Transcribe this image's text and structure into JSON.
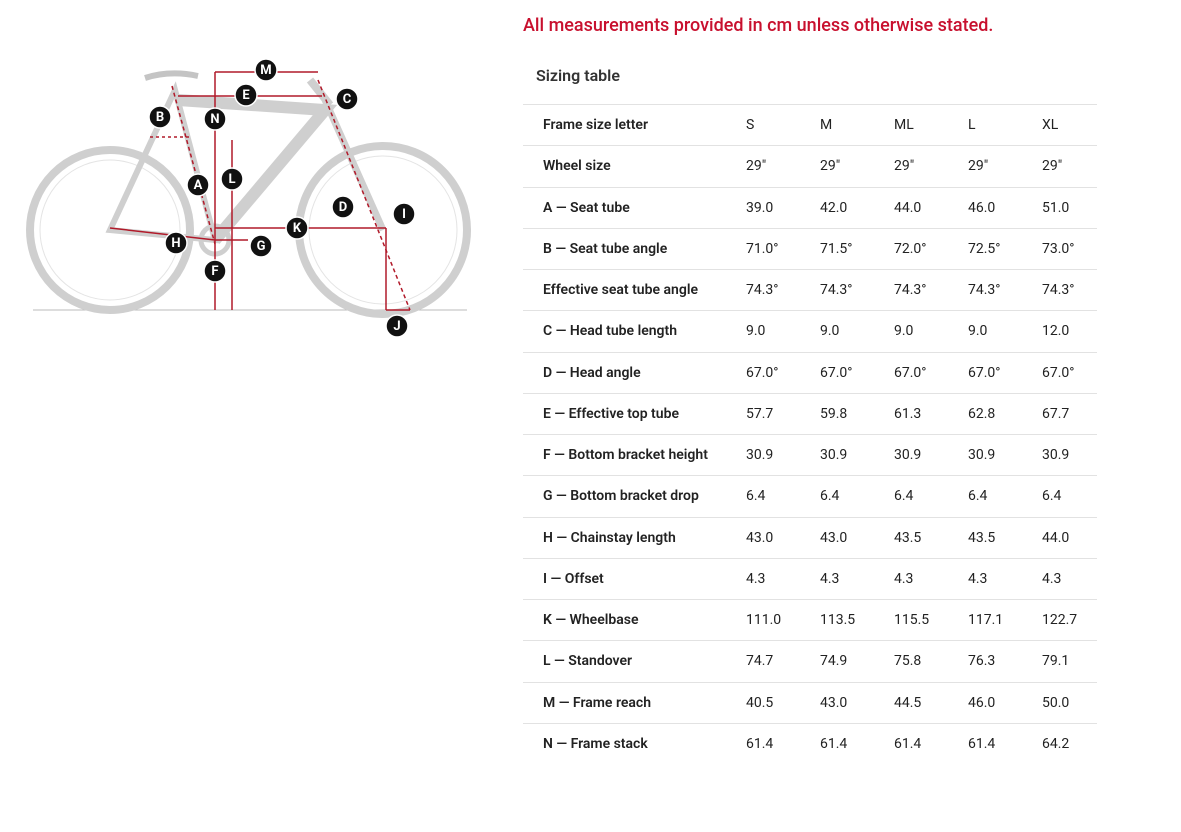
{
  "note": "All measurements provided in cm unless otherwise stated.",
  "diagram": {
    "labels": [
      "M",
      "E",
      "N",
      "B",
      "C",
      "A",
      "L",
      "D",
      "I",
      "K",
      "H",
      "G",
      "F",
      "J"
    ]
  },
  "table": {
    "title": "Sizing table",
    "header": [
      "Frame size letter",
      "S",
      "M",
      "ML",
      "L",
      "XL"
    ],
    "rows": [
      [
        "Wheel size",
        "29\"",
        "29\"",
        "29\"",
        "29\"",
        "29\""
      ],
      [
        "A — Seat tube",
        "39.0",
        "42.0",
        "44.0",
        "46.0",
        "51.0"
      ],
      [
        "B — Seat tube angle",
        "71.0°",
        "71.5°",
        "72.0°",
        "72.5°",
        "73.0°"
      ],
      [
        "Effective seat tube angle",
        "74.3°",
        "74.3°",
        "74.3°",
        "74.3°",
        "74.3°"
      ],
      [
        "C — Head tube length",
        "9.0",
        "9.0",
        "9.0",
        "9.0",
        "12.0"
      ],
      [
        "D — Head angle",
        "67.0°",
        "67.0°",
        "67.0°",
        "67.0°",
        "67.0°"
      ],
      [
        "E — Effective top tube",
        "57.7",
        "59.8",
        "61.3",
        "62.8",
        "67.7"
      ],
      [
        "F — Bottom bracket height",
        "30.9",
        "30.9",
        "30.9",
        "30.9",
        "30.9"
      ],
      [
        "G — Bottom bracket drop",
        "6.4",
        "6.4",
        "6.4",
        "6.4",
        "6.4"
      ],
      [
        "H — Chainstay length",
        "43.0",
        "43.0",
        "43.5",
        "43.5",
        "44.0"
      ],
      [
        "I — Offset",
        "4.3",
        "4.3",
        "4.3",
        "4.3",
        "4.3"
      ],
      [
        "K — Wheelbase",
        "111.0",
        "113.5",
        "115.5",
        "117.1",
        "122.7"
      ],
      [
        "L — Standover",
        "74.7",
        "74.9",
        "75.8",
        "76.3",
        "79.1"
      ],
      [
        "M — Frame reach",
        "40.5",
        "43.0",
        "44.5",
        "46.0",
        "50.0"
      ],
      [
        "N — Frame stack",
        "61.4",
        "61.4",
        "61.4",
        "61.4",
        "64.2"
      ]
    ]
  }
}
